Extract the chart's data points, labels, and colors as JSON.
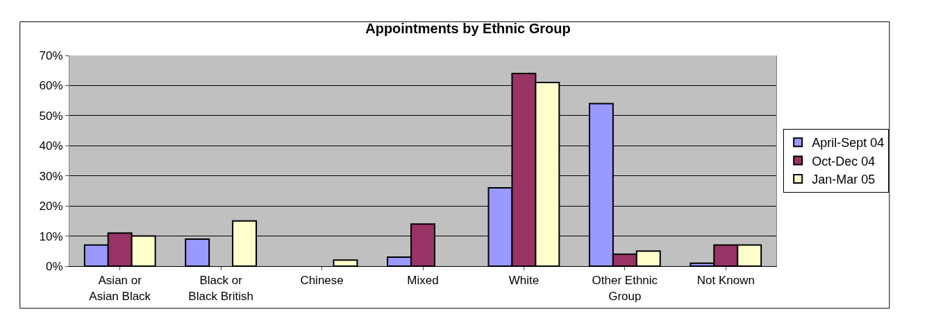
{
  "chart_data": {
    "type": "bar",
    "title": "Appointments by Ethnic Group",
    "categories": [
      "Asian or Asian Black",
      "Black or Black British",
      "Chinese",
      "Mixed",
      "White",
      "Other Ethnic Group",
      "Not Known"
    ],
    "series": [
      {
        "name": "April-Sept 04",
        "color": "#9999ff",
        "values": [
          7,
          9,
          null,
          3,
          26,
          54,
          1
        ]
      },
      {
        "name": "Oct-Dec 04",
        "color": "#993366",
        "values": [
          11,
          null,
          null,
          14,
          64,
          4,
          7
        ]
      },
      {
        "name": "Jan-Mar 05",
        "color": "#ffffcc",
        "values": [
          10,
          15,
          2,
          null,
          61,
          5,
          7
        ]
      }
    ],
    "ylim": [
      0,
      70
    ],
    "yticks": [
      {
        "value": 0,
        "label": "0%"
      },
      {
        "value": 10,
        "label": "10%"
      },
      {
        "value": 20,
        "label": "20%"
      },
      {
        "value": 30,
        "label": "30%"
      },
      {
        "value": 40,
        "label": "40%"
      },
      {
        "value": 50,
        "label": "50%"
      },
      {
        "value": 60,
        "label": "60%"
      },
      {
        "value": 70,
        "label": "70%"
      }
    ],
    "grid": "y",
    "legend": "right"
  }
}
